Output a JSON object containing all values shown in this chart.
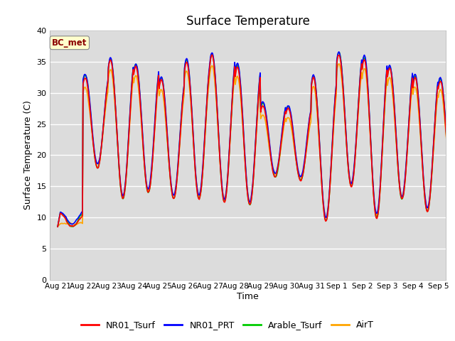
{
  "title": "Surface Temperature",
  "ylabel": "Surface Temperature (C)",
  "xlabel": "Time",
  "ylim": [
    0,
    40
  ],
  "yticks": [
    0,
    5,
    10,
    15,
    20,
    25,
    30,
    35,
    40
  ],
  "background_color": "#dcdcdc",
  "fig_background": "#ffffff",
  "annotation_text": "BC_met",
  "annotation_color": "#8b0000",
  "annotation_bg": "#ffffcc",
  "series": {
    "NR01_Tsurf": {
      "color": "#ff0000",
      "lw": 1.2
    },
    "NR01_PRT": {
      "color": "#0000ff",
      "lw": 1.2
    },
    "Arable_Tsurf": {
      "color": "#00cc00",
      "lw": 1.2
    },
    "AirT": {
      "color": "#ffa500",
      "lw": 1.2
    }
  },
  "x_tick_labels": [
    "Aug 21",
    "Aug 22",
    "Aug 23",
    "Aug 24",
    "Aug 25",
    "Aug 26",
    "Aug 27",
    "Aug 28",
    "Aug 29",
    "Aug 30",
    "Aug 31",
    "Sep 1",
    "Sep 2",
    "Sep 3",
    "Sep 4",
    "Sep 5"
  ],
  "n_days": 16,
  "ppd": 48
}
